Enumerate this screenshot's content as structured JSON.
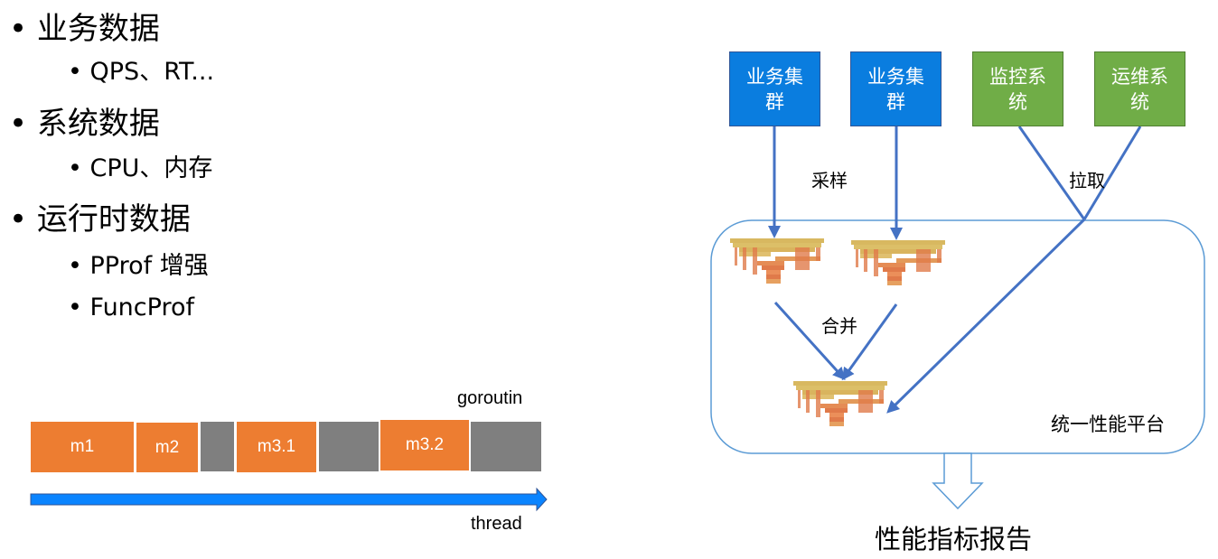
{
  "bullets": [
    {
      "label": "业务数据",
      "subs": [
        "QPS、RT..."
      ]
    },
    {
      "label": "系统数据",
      "subs": [
        "CPU、内存"
      ]
    },
    {
      "label": "运行时数据",
      "subs": [
        "PProf 增强",
        "FuncProf"
      ]
    }
  ],
  "timeline": {
    "top_label": "goroutin",
    "bottom_label": "thread",
    "segments": [
      "m1",
      "m2",
      "",
      "m3.1",
      "",
      "m3.2",
      ""
    ]
  },
  "diagram": {
    "sources": [
      "业务集群",
      "业务集群",
      "监控系统",
      "运维系统"
    ],
    "sample_label": "采样",
    "pull_label": "拉取",
    "merge_label": "合并",
    "platform_label": "统一性能平台",
    "output_label": "性能指标报告"
  },
  "colors": {
    "business": "#0a7ddf",
    "ops": "#70ad47",
    "orange": "#ed7d31",
    "gray": "#7f7f7f",
    "arrow": "#4472c4",
    "platform_border": "#5b9bd5"
  }
}
